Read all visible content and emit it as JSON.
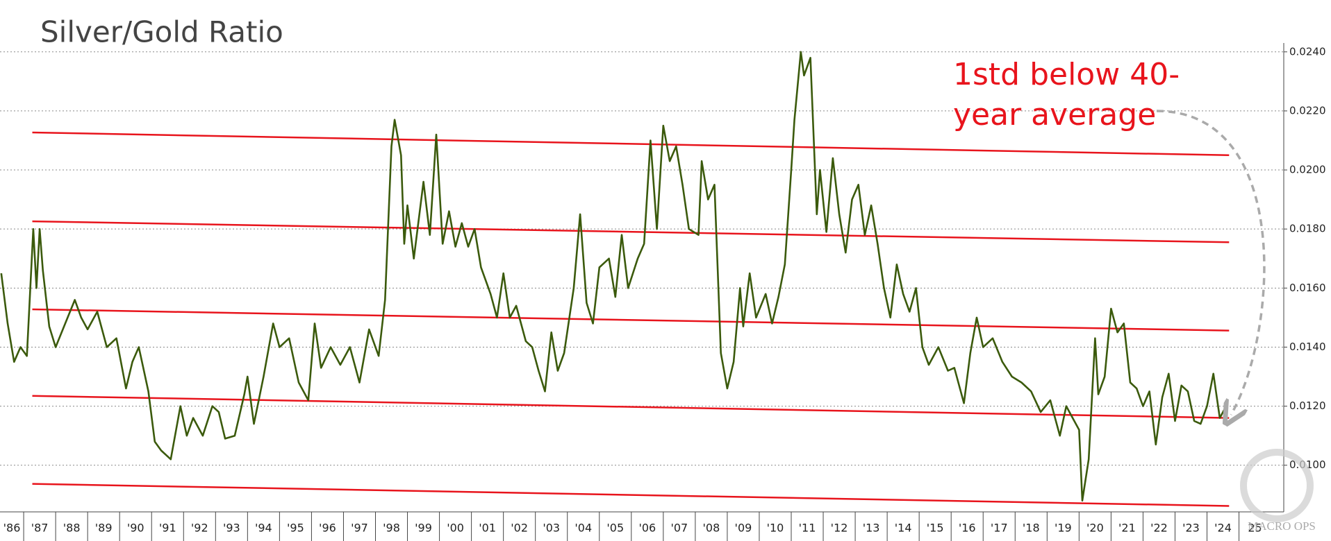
{
  "chart_data": {
    "type": "line",
    "title": "Silver/Gold Ratio",
    "color": "#3b5a0c",
    "x": [
      1986.3,
      1986.5,
      1986.7,
      1986.9,
      1987.1,
      1987.3,
      1987.4,
      1987.5,
      1987.6,
      1987.8,
      1988.0,
      1988.3,
      1988.6,
      1988.8,
      1989.0,
      1989.3,
      1989.6,
      1989.9,
      1990.2,
      1990.4,
      1990.6,
      1990.9,
      1991.1,
      1991.3,
      1991.6,
      1991.9,
      1992.1,
      1992.3,
      1992.6,
      1992.9,
      1993.1,
      1993.3,
      1993.6,
      1993.9,
      1994.0,
      1994.2,
      1994.5,
      1994.8,
      1995.0,
      1995.3,
      1995.6,
      1995.9,
      1996.1,
      1996.3,
      1996.6,
      1996.9,
      1997.2,
      1997.5,
      1997.8,
      1998.1,
      1998.3,
      1998.5,
      1998.6,
      1998.8,
      1998.9,
      1999.0,
      1999.2,
      1999.5,
      1999.7,
      1999.9,
      2000.1,
      2000.3,
      2000.5,
      2000.7,
      2000.9,
      2001.1,
      2001.3,
      2001.6,
      2001.8,
      2002.0,
      2002.2,
      2002.4,
      2002.7,
      2002.9,
      2003.1,
      2003.3,
      2003.5,
      2003.7,
      2003.9,
      2004.2,
      2004.4,
      2004.6,
      2004.8,
      2005.0,
      2005.3,
      2005.5,
      2005.7,
      2005.9,
      2006.2,
      2006.4,
      2006.6,
      2006.8,
      2007.0,
      2007.2,
      2007.4,
      2007.6,
      2007.8,
      2008.1,
      2008.2,
      2008.4,
      2008.6,
      2008.8,
      2009.0,
      2009.2,
      2009.4,
      2009.5,
      2009.7,
      2009.9,
      2010.2,
      2010.4,
      2010.6,
      2010.8,
      2011.0,
      2011.1,
      2011.3,
      2011.4,
      2011.6,
      2011.8,
      2011.9,
      2012.1,
      2012.3,
      2012.5,
      2012.7,
      2012.9,
      2013.1,
      2013.3,
      2013.5,
      2013.7,
      2013.9,
      2014.1,
      2014.3,
      2014.5,
      2014.7,
      2014.9,
      2015.1,
      2015.3,
      2015.6,
      2015.9,
      2016.1,
      2016.4,
      2016.6,
      2016.8,
      2017.0,
      2017.3,
      2017.6,
      2017.9,
      2018.2,
      2018.5,
      2018.8,
      2019.1,
      2019.4,
      2019.6,
      2019.8,
      2020.0,
      2020.1,
      2020.3,
      2020.5,
      2020.6,
      2020.8,
      2021.0,
      2021.2,
      2021.4,
      2021.6,
      2021.8,
      2022.0,
      2022.2,
      2022.4,
      2022.6,
      2022.8,
      2023.0,
      2023.2,
      2023.4,
      2023.6,
      2023.8,
      2024.0,
      2024.2,
      2024.4,
      2024.6
    ],
    "values": [
      0.0165,
      0.0148,
      0.0135,
      0.014,
      0.0137,
      0.018,
      0.016,
      0.018,
      0.0166,
      0.0147,
      0.014,
      0.0148,
      0.0156,
      0.015,
      0.0146,
      0.0152,
      0.014,
      0.0143,
      0.0126,
      0.0135,
      0.014,
      0.0125,
      0.0108,
      0.0105,
      0.0102,
      0.012,
      0.011,
      0.0116,
      0.011,
      0.012,
      0.0118,
      0.0109,
      0.011,
      0.0124,
      0.013,
      0.0114,
      0.013,
      0.0148,
      0.014,
      0.0143,
      0.0128,
      0.0122,
      0.0148,
      0.0133,
      0.014,
      0.0134,
      0.014,
      0.0128,
      0.0146,
      0.0137,
      0.0156,
      0.0208,
      0.0217,
      0.0205,
      0.0175,
      0.0188,
      0.017,
      0.0196,
      0.0178,
      0.0212,
      0.0175,
      0.0186,
      0.0174,
      0.0182,
      0.0174,
      0.018,
      0.0167,
      0.0158,
      0.015,
      0.0165,
      0.015,
      0.0154,
      0.0142,
      0.014,
      0.0132,
      0.0125,
      0.0145,
      0.0132,
      0.0138,
      0.016,
      0.0185,
      0.0155,
      0.0148,
      0.0167,
      0.017,
      0.0157,
      0.0178,
      0.016,
      0.017,
      0.0175,
      0.021,
      0.018,
      0.0215,
      0.0203,
      0.0208,
      0.0195,
      0.018,
      0.0178,
      0.0203,
      0.019,
      0.0195,
      0.0138,
      0.0126,
      0.0135,
      0.016,
      0.0147,
      0.0165,
      0.015,
      0.0158,
      0.0148,
      0.0157,
      0.0168,
      0.02,
      0.0217,
      0.024,
      0.0232,
      0.0238,
      0.0185,
      0.02,
      0.0179,
      0.0204,
      0.0185,
      0.0172,
      0.019,
      0.0195,
      0.0178,
      0.0188,
      0.0175,
      0.016,
      0.015,
      0.0168,
      0.0158,
      0.0152,
      0.016,
      0.014,
      0.0134,
      0.014,
      0.0132,
      0.0133,
      0.0121,
      0.0138,
      0.015,
      0.014,
      0.0143,
      0.0135,
      0.013,
      0.0128,
      0.0125,
      0.0118,
      0.0122,
      0.011,
      0.012,
      0.0116,
      0.0112,
      0.0088,
      0.0102,
      0.0143,
      0.0124,
      0.013,
      0.0153,
      0.0145,
      0.0148,
      0.0128,
      0.0126,
      0.012,
      0.0125,
      0.0107,
      0.0123,
      0.0131,
      0.0115,
      0.0127,
      0.0125,
      0.0115,
      0.0114,
      0.012,
      0.0131,
      0.0116,
      0.012
    ],
    "bands": {
      "color": "#e8141c",
      "lines": [
        {
          "x": [
            1987.27,
            2024.69
          ],
          "values": [
            0.02127,
            0.0205
          ]
        },
        {
          "x": [
            1987.27,
            2024.69
          ],
          "values": [
            0.01826,
            0.01755
          ]
        },
        {
          "x": [
            1987.27,
            2024.69
          ],
          "values": [
            0.01528,
            0.01456
          ]
        },
        {
          "x": [
            1987.27,
            2024.69
          ],
          "values": [
            0.01235,
            0.0116
          ]
        },
        {
          "x": [
            1987.27,
            2024.69
          ],
          "values": [
            0.00937,
            0.00862
          ]
        }
      ]
    },
    "xlim": [
      1986.26,
      2026.4
    ],
    "ylim": [
      0.00842,
      0.0243
    ],
    "yticks": [
      {
        "value": 0.01,
        "label": "0.0100"
      },
      {
        "value": 0.012,
        "label": "0.0120"
      },
      {
        "value": 0.014,
        "label": "0.0140"
      },
      {
        "value": 0.016,
        "label": "0.0160"
      },
      {
        "value": 0.018,
        "label": "0.0180"
      },
      {
        "value": 0.02,
        "label": "0.0200"
      },
      {
        "value": 0.022,
        "label": "0.0220"
      },
      {
        "value": 0.024,
        "label": "0.0240"
      }
    ],
    "xticks": [
      {
        "value": 1986,
        "label": "'86"
      },
      {
        "value": 1987,
        "label": "'87"
      },
      {
        "value": 1988,
        "label": "'88"
      },
      {
        "value": 1989,
        "label": "'89"
      },
      {
        "value": 1990,
        "label": "'90"
      },
      {
        "value": 1991,
        "label": "'91"
      },
      {
        "value": 1992,
        "label": "'92"
      },
      {
        "value": 1993,
        "label": "'93"
      },
      {
        "value": 1994,
        "label": "'94"
      },
      {
        "value": 1995,
        "label": "'95"
      },
      {
        "value": 1996,
        "label": "'96"
      },
      {
        "value": 1997,
        "label": "'97"
      },
      {
        "value": 1998,
        "label": "'98"
      },
      {
        "value": 1999,
        "label": "'99"
      },
      {
        "value": 2000,
        "label": "'00"
      },
      {
        "value": 2001,
        "label": "'01"
      },
      {
        "value": 2002,
        "label": "'02"
      },
      {
        "value": 2003,
        "label": "'03"
      },
      {
        "value": 2004,
        "label": "'04"
      },
      {
        "value": 2005,
        "label": "'05"
      },
      {
        "value": 2006,
        "label": "'06"
      },
      {
        "value": 2007,
        "label": "'07"
      },
      {
        "value": 2008,
        "label": "'08"
      },
      {
        "value": 2009,
        "label": "'09"
      },
      {
        "value": 2010,
        "label": "'10"
      },
      {
        "value": 2011,
        "label": "'11"
      },
      {
        "value": 2012,
        "label": "'12"
      },
      {
        "value": 2013,
        "label": "'13"
      },
      {
        "value": 2014,
        "label": "'14"
      },
      {
        "value": 2015,
        "label": "'15"
      },
      {
        "value": 2016,
        "label": "'16"
      },
      {
        "value": 2017,
        "label": "'17"
      },
      {
        "value": 2018,
        "label": "'18"
      },
      {
        "value": 2019,
        "label": "'19"
      },
      {
        "value": 2020,
        "label": "'20"
      },
      {
        "value": 2021,
        "label": "'21"
      },
      {
        "value": 2022,
        "label": "'22"
      },
      {
        "value": 2023,
        "label": "'23"
      },
      {
        "value": 2024,
        "label": "'24"
      },
      {
        "value": 2025,
        "label": "25"
      }
    ],
    "grid": true,
    "annotations": [
      "1std below 40-",
      "year average"
    ],
    "watermark": "MACRO OPS"
  }
}
